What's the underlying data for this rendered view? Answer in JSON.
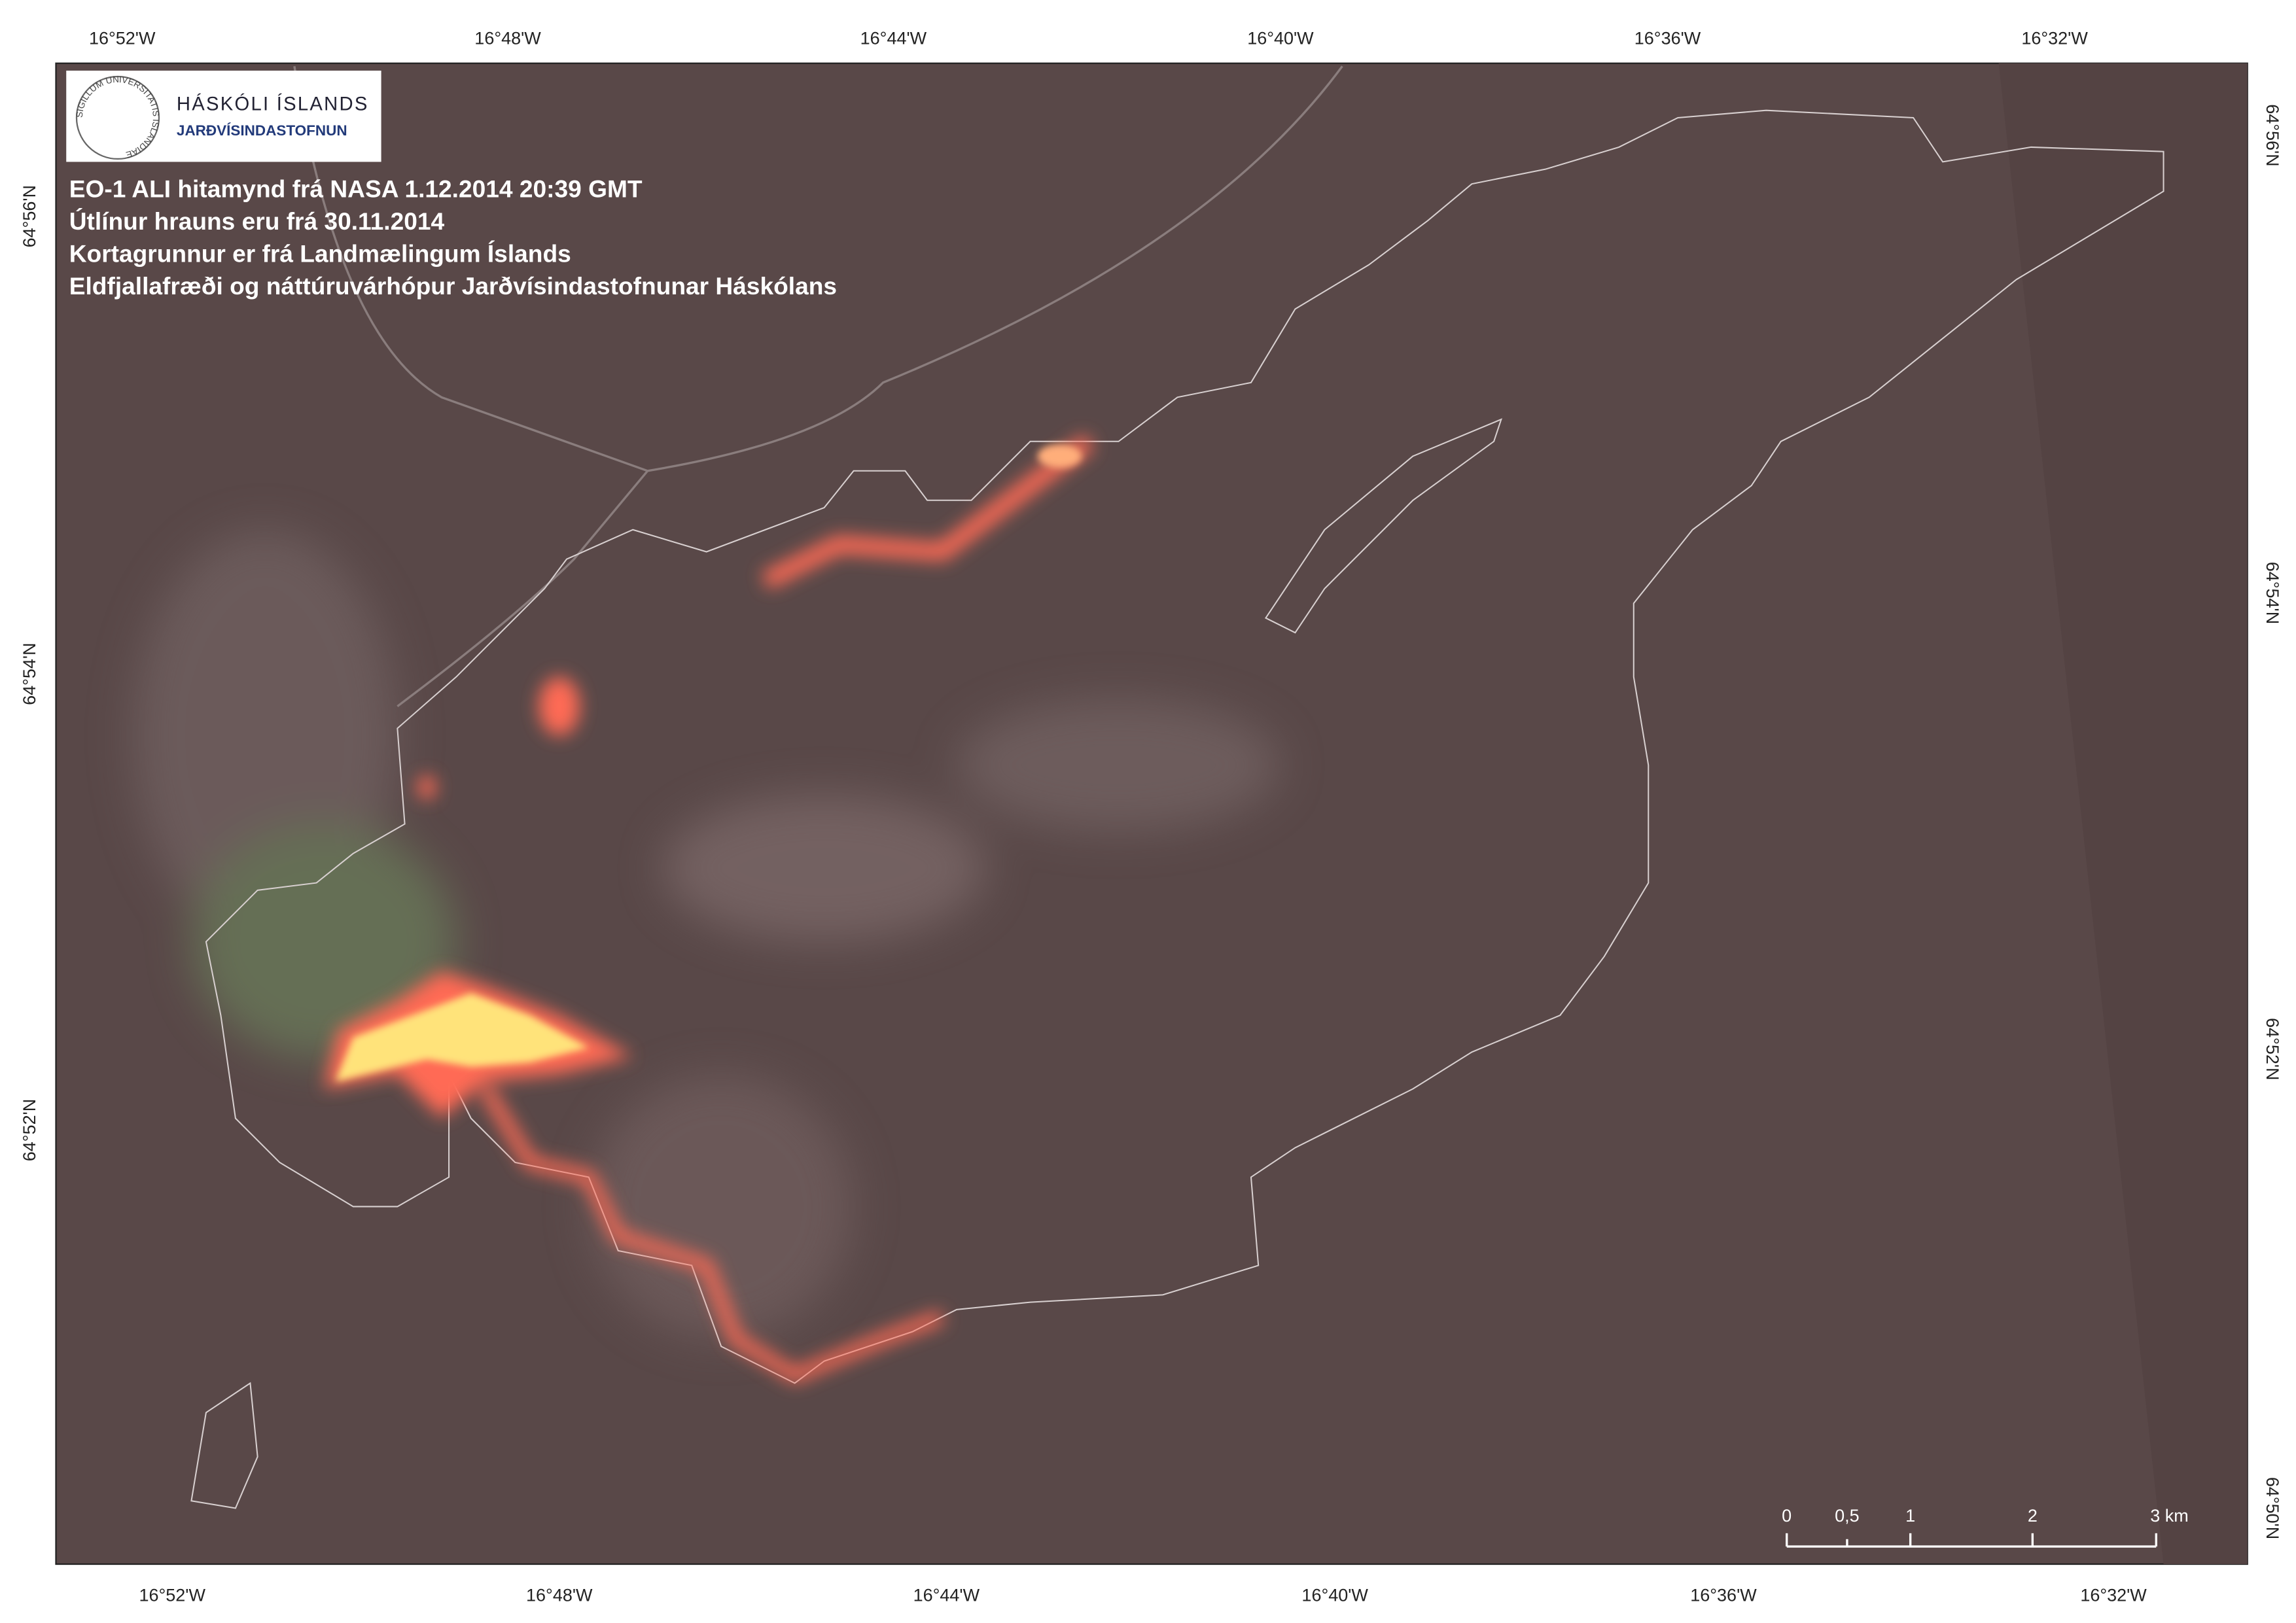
{
  "header": {
    "logo": {
      "name": "HÁSKÓLI ÍSLANDS",
      "unit": "JARÐVÍSINDASTOFNUN",
      "seal": "SIGILLUM UNIVERSITATIS ISLANDIAE"
    },
    "lines": [
      "EO-1 ALI hitamynd frá NASA 1.12.2014 20:39 GMT",
      "Útlínur hrauns eru frá 30.11.2014",
      "Kortagrunnur er frá Landmælingum Íslands",
      "Eldfjallafræði og náttúruvárhópur Jarðvísindastofnunar Háskólans"
    ]
  },
  "axes": {
    "top": [
      "16°52'W",
      "16°48'W",
      "16°44'W",
      "16°40'W",
      "16°36'W",
      "16°32'W"
    ],
    "bottom": [
      "16°52'W",
      "16°48'W",
      "16°44'W",
      "16°40'W",
      "16°36'W",
      "16°32'W"
    ],
    "left": [
      "64°56'N",
      "64°54'N",
      "64°52'N"
    ],
    "right": [
      "64°56'N",
      "64°54'N",
      "64°52'N",
      "64°50'N"
    ]
  },
  "scale_bar": {
    "labels": [
      "0",
      "0,5",
      "1",
      "2",
      "3 km"
    ]
  }
}
